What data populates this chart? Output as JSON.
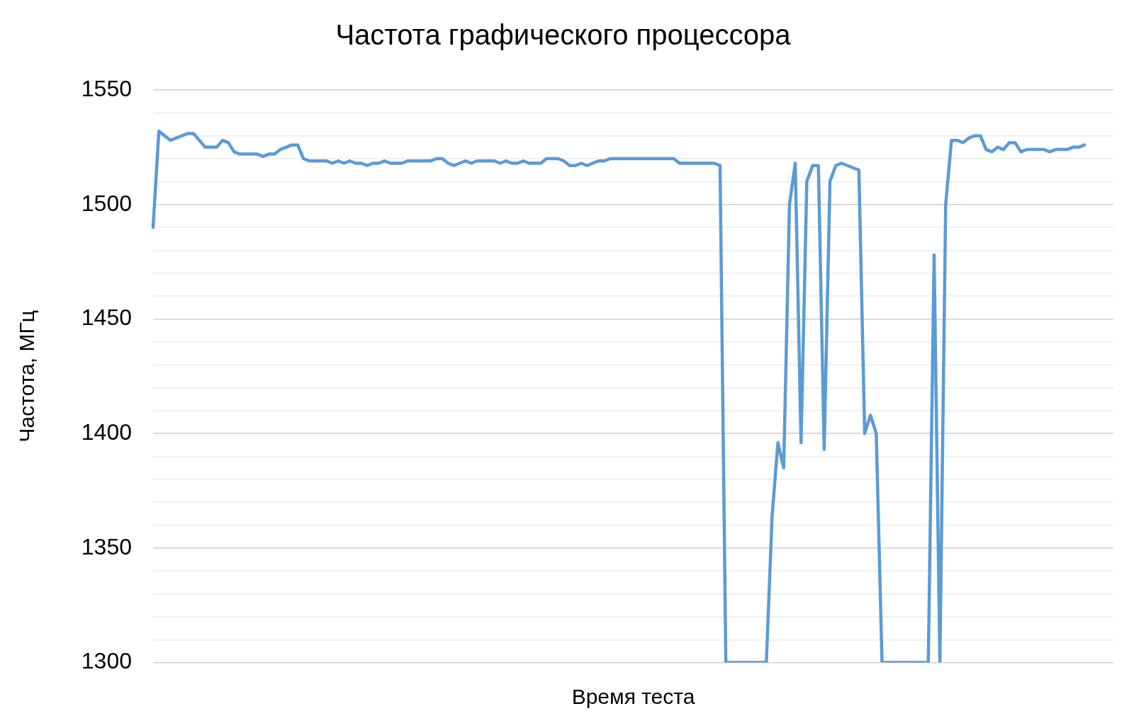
{
  "chart_data": {
    "type": "line",
    "title": "Частота графического процессора",
    "xlabel": "Время теста",
    "ylabel": "Частота, МГц",
    "categories": [
      null,
      null,
      null,
      null,
      null,
      null,
      null,
      null,
      null,
      null,
      null,
      null,
      null,
      null,
      null,
      null,
      null,
      null,
      null,
      null,
      null,
      null,
      null,
      null,
      null,
      null,
      null,
      null,
      null,
      null,
      null,
      null,
      null,
      null,
      null,
      null,
      null,
      null,
      null,
      null,
      null,
      null,
      null,
      null,
      null,
      null,
      null,
      null,
      null,
      null,
      null,
      null,
      null,
      null,
      null,
      null,
      null,
      null,
      null,
      null,
      null,
      null,
      null,
      null,
      null,
      null,
      null,
      null,
      null,
      null,
      null,
      null,
      null,
      null,
      null,
      null,
      null,
      null,
      null,
      null,
      null,
      null,
      null,
      null,
      null,
      null,
      null,
      null,
      null,
      null,
      null,
      null,
      null,
      null,
      null,
      null,
      null,
      null,
      null,
      null,
      null,
      null,
      null,
      null,
      null,
      null,
      null,
      null,
      null,
      null,
      null,
      null,
      null,
      null,
      null,
      null,
      null,
      null,
      null,
      null,
      null,
      null,
      null,
      null,
      null,
      null,
      null,
      null,
      null,
      null,
      null,
      null,
      null,
      null,
      null,
      null,
      null,
      null,
      null,
      null,
      null,
      null,
      null,
      null,
      null,
      null,
      null,
      null,
      null,
      null,
      null,
      null,
      null,
      null,
      null,
      null,
      null,
      null,
      null,
      null,
      null,
      null,
      null,
      null,
      null,
      null,
      null
    ],
    "series": [
      {
        "color": "#5b9bd5",
        "values": [
          1490,
          1532,
          1530,
          1528,
          1529,
          1530,
          1531,
          1531,
          1528,
          1525,
          1525,
          1525,
          1528,
          1527,
          1523,
          1522,
          1522,
          1522,
          1522,
          1521,
          1522,
          1522,
          1524,
          1525,
          1526,
          1526,
          1520,
          1519,
          1519,
          1519,
          1519,
          1518,
          1519,
          1518,
          1519,
          1518,
          1518,
          1517,
          1518,
          1518,
          1519,
          1518,
          1518,
          1518,
          1519,
          1519,
          1519,
          1519,
          1519,
          1520,
          1520,
          1518,
          1517,
          1518,
          1519,
          1518,
          1519,
          1519,
          1519,
          1519,
          1518,
          1519,
          1518,
          1518,
          1519,
          1518,
          1518,
          1518,
          1520,
          1520,
          1520,
          1519,
          1517,
          1517,
          1518,
          1517,
          1518,
          1519,
          1519,
          1520,
          1520,
          1520,
          1520,
          1520,
          1520,
          1520,
          1520,
          1520,
          1520,
          1520,
          1520,
          1518,
          1518,
          1518,
          1518,
          1518,
          1518,
          1518,
          1517,
          1300,
          1300,
          1300,
          1300,
          1300,
          1300,
          1300,
          1300,
          1364,
          1396,
          1385,
          1500,
          1518,
          1396,
          1510,
          1517,
          1517,
          1393,
          1510,
          1517,
          1518,
          1517,
          1516,
          1515,
          1400,
          1408,
          1400,
          1300,
          1300,
          1300,
          1300,
          1300,
          1300,
          1300,
          1300,
          1300,
          1478,
          1300,
          1500,
          1528,
          1528,
          1527,
          1529,
          1530,
          1530,
          1524,
          1523,
          1525,
          1524,
          1527,
          1527,
          1523,
          1524,
          1524,
          1524,
          1524,
          1523,
          1524,
          1524,
          1524,
          1525,
          1525,
          1526,
          null,
          null,
          null,
          null,
          null
        ]
      }
    ],
    "ylim": [
      1300,
      1550
    ],
    "yticks": [
      1300,
      {
        "value": 1310,
        "label": null
      },
      {
        "value": 1320,
        "label": null
      },
      {
        "value": 1330,
        "label": null
      },
      {
        "value": 1340,
        "label": null
      },
      1350,
      {
        "value": 1360,
        "label": null
      },
      {
        "value": 1370,
        "label": null
      },
      {
        "value": 1380,
        "label": null
      },
      {
        "value": 1390,
        "label": null
      },
      1400,
      {
        "value": 1410,
        "label": null
      },
      {
        "value": 1420,
        "label": null
      },
      {
        "value": 1430,
        "label": null
      },
      {
        "value": 1440,
        "label": null
      },
      1450,
      {
        "value": 1460,
        "label": null
      },
      {
        "value": 1470,
        "label": null
      },
      {
        "value": 1480,
        "label": null
      },
      {
        "value": 1490,
        "label": null
      },
      1500,
      {
        "value": 1510,
        "label": null
      },
      {
        "value": 1520,
        "label": null
      },
      {
        "value": 1530,
        "label": null
      },
      {
        "value": 1540,
        "label": null
      },
      1550
    ],
    "grid": "y",
    "legend": false,
    "marker": "none",
    "line_style": "solid"
  }
}
